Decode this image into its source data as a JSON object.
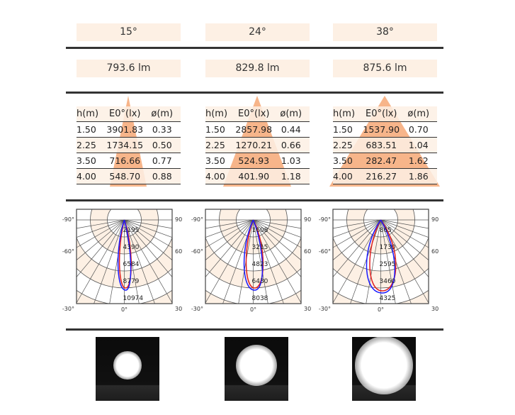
{
  "columns": [
    {
      "beam_angle": "15°",
      "lumen": "793.6 lm",
      "headers": [
        "h(m)",
        "E0°(lx)",
        "ø(m)"
      ],
      "rows": [
        [
          "1.50",
          "3901.83",
          "0.33"
        ],
        [
          "2.25",
          "1734.15",
          "0.50"
        ],
        [
          "3.50",
          "716.66",
          "0.77"
        ],
        [
          "4.00",
          "548.70",
          "0.88"
        ]
      ],
      "polar": {
        "ring_labels": [
          "2195",
          "4390",
          "6584",
          "8779",
          "10974"
        ],
        "angles_left": [
          "-90°",
          "-60°",
          "-30°"
        ],
        "angles_right": [
          "90°",
          "60°",
          "30°"
        ],
        "angle_bottom": "0°"
      }
    },
    {
      "beam_angle": "24°",
      "lumen": "829.8 lm",
      "headers": [
        "h(m)",
        "E0°(lx)",
        "ø(m)"
      ],
      "rows": [
        [
          "1.50",
          "2857.98",
          "0.44"
        ],
        [
          "2.25",
          "1270.21",
          "0.66"
        ],
        [
          "3.50",
          "524.93",
          "1.03"
        ],
        [
          "4.00",
          "401.90",
          "1.18"
        ]
      ],
      "polar": {
        "ring_labels": [
          "1608",
          "3215",
          "4823",
          "6430",
          "8038"
        ],
        "angles_left": [
          "-90°",
          "-60°",
          "-30°"
        ],
        "angles_right": [
          "90°",
          "60°",
          "30°"
        ],
        "angle_bottom": "0°"
      }
    },
    {
      "beam_angle": "38°",
      "lumen": "875.6 lm",
      "headers": [
        "h(m)",
        "E0°(lx)",
        "ø(m)"
      ],
      "rows": [
        [
          "1.50",
          "1537.90",
          "0.70"
        ],
        [
          "2.25",
          "683.51",
          "1.04"
        ],
        [
          "3.50",
          "282.47",
          "1.62"
        ],
        [
          "4.00",
          "216.27",
          "1.86"
        ]
      ],
      "polar": {
        "ring_labels": [
          "865",
          "1730",
          "2595",
          "3460",
          "4325"
        ],
        "angles_left": [
          "-90°",
          "-60°",
          "-30°"
        ],
        "angles_right": [
          "90°",
          "60°",
          "30°"
        ],
        "angle_bottom": "0°"
      }
    }
  ],
  "colors": {
    "band": "#fdf0e4",
    "cone": "#f7b58a",
    "curve_c0": "#e02020",
    "curve_c90": "#1a1aff"
  }
}
